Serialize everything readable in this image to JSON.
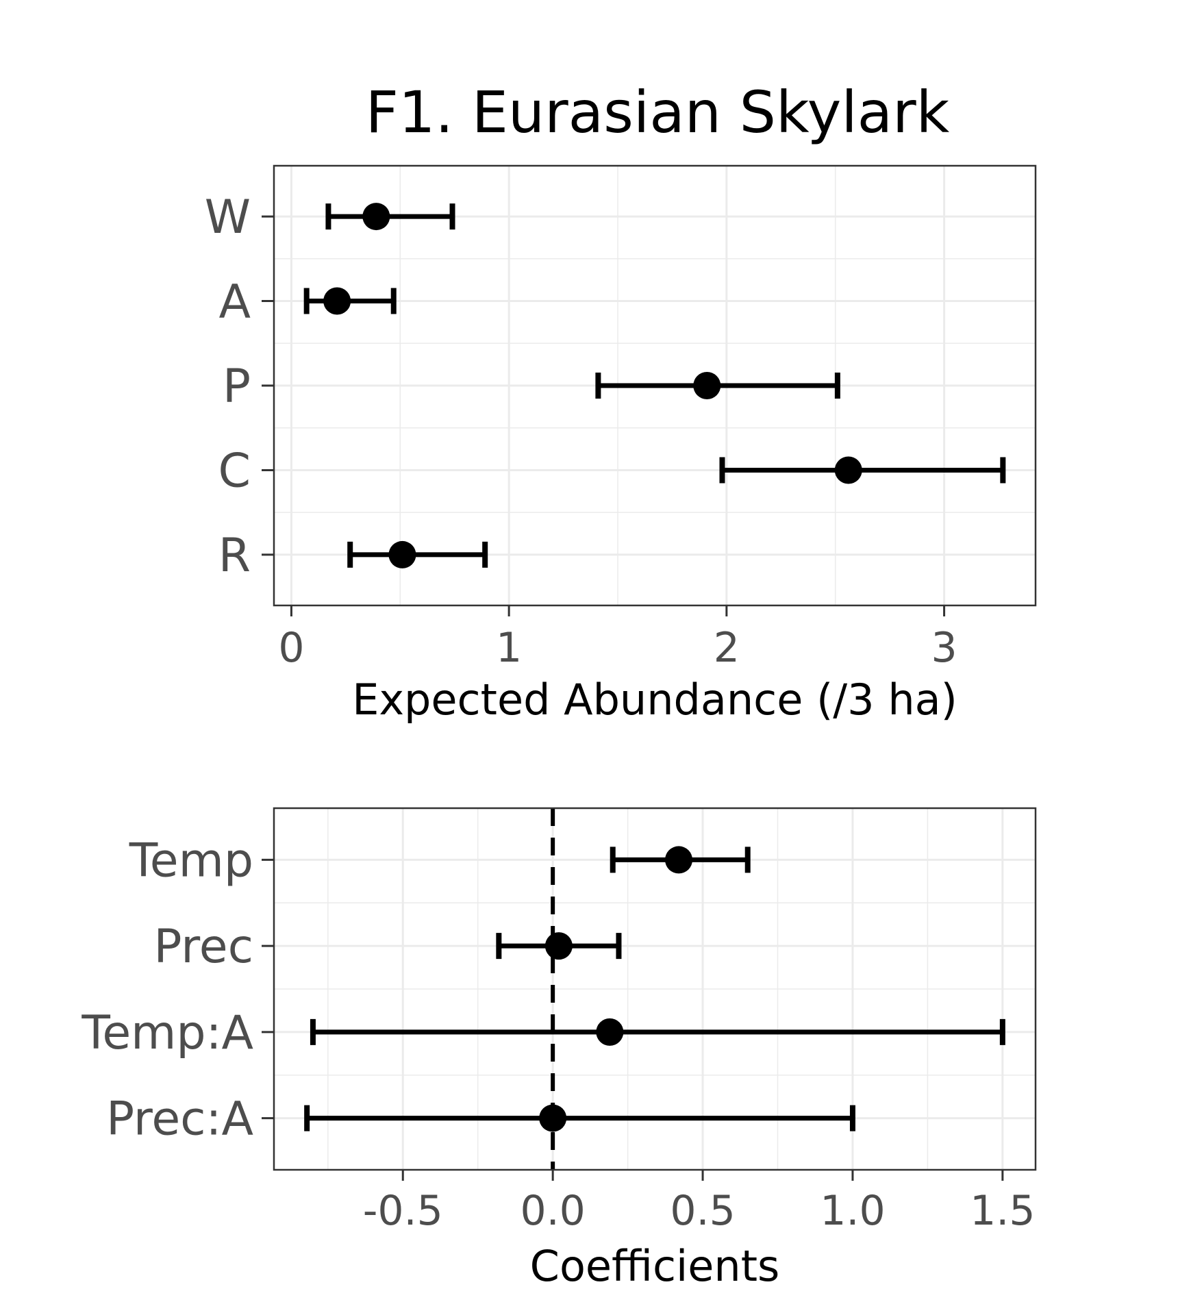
{
  "figure": {
    "title": "F1. Eurasian Skylark"
  },
  "chart_data": [
    {
      "type": "errorbar",
      "orientation": "horizontal",
      "title": "F1. Eurasian Skylark",
      "xlabel": "Expected Abundance (/3 ha)",
      "ylabel": "",
      "xlim": [
        -0.08,
        3.42
      ],
      "xticks": [
        0,
        1,
        2,
        3
      ],
      "xtick_labels": [
        "0",
        "1",
        "2",
        "3"
      ],
      "grid": true,
      "categories": [
        "W",
        "A",
        "P",
        "C",
        "R"
      ],
      "estimates": [
        0.39,
        0.21,
        1.91,
        2.56,
        0.51
      ],
      "lower": [
        0.17,
        0.07,
        1.41,
        1.98,
        0.27
      ],
      "upper": [
        0.74,
        0.47,
        2.51,
        3.27,
        0.89
      ],
      "reference_line": null
    },
    {
      "type": "errorbar",
      "orientation": "horizontal",
      "title": "",
      "xlabel": "Coefficients",
      "ylabel": "",
      "xlim": [
        -0.93,
        1.61
      ],
      "xticks": [
        -0.5,
        0.0,
        0.5,
        1.0,
        1.5
      ],
      "xtick_labels": [
        "-0.5",
        "0.0",
        "0.5",
        "1.0",
        "1.5"
      ],
      "grid": true,
      "categories": [
        "Temp",
        "Prec",
        "Temp:A",
        "Prec:A"
      ],
      "estimates": [
        0.42,
        0.02,
        0.19,
        0.0
      ],
      "lower": [
        0.2,
        -0.18,
        -0.8,
        -0.82
      ],
      "upper": [
        0.65,
        0.22,
        1.5,
        1.0
      ],
      "reference_line": 0
    }
  ]
}
